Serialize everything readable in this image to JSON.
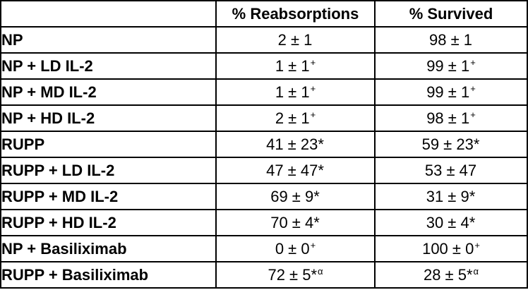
{
  "table": {
    "headers": [
      "",
      "% Reabsorptions",
      "% Survived"
    ],
    "rows": [
      {
        "label": "NP",
        "reabsorptions": {
          "value": "2 ± 1",
          "sup": ""
        },
        "survived": {
          "value": "98 ± 1",
          "sup": ""
        }
      },
      {
        "label": "NP + LD IL-2",
        "reabsorptions": {
          "value": "1 ± 1",
          "sup": "+"
        },
        "survived": {
          "value": "99 ± 1",
          "sup": "+"
        }
      },
      {
        "label": "NP + MD IL-2",
        "reabsorptions": {
          "value": "1 ± 1",
          "sup": "+"
        },
        "survived": {
          "value": "99 ± 1",
          "sup": "+"
        }
      },
      {
        "label": "NP + HD IL-2",
        "reabsorptions": {
          "value": "2 ± 1",
          "sup": "+"
        },
        "survived": {
          "value": "98 ± 1",
          "sup": "+"
        }
      },
      {
        "label": "RUPP",
        "reabsorptions": {
          "value": "41 ± 23*",
          "sup": ""
        },
        "survived": {
          "value": "59 ± 23*",
          "sup": ""
        }
      },
      {
        "label": "RUPP + LD IL-2",
        "reabsorptions": {
          "value": "47 ± 47*",
          "sup": ""
        },
        "survived": {
          "value": "53 ± 47",
          "sup": ""
        }
      },
      {
        "label": "RUPP + MD IL-2",
        "reabsorptions": {
          "value": "69 ± 9*",
          "sup": ""
        },
        "survived": {
          "value": "31 ± 9*",
          "sup": ""
        }
      },
      {
        "label": "RUPP + HD IL-2",
        "reabsorptions": {
          "value": "70 ± 4*",
          "sup": ""
        },
        "survived": {
          "value": "30 ± 4*",
          "sup": ""
        }
      },
      {
        "label": "NP + Basiliximab",
        "reabsorptions": {
          "value": "0 ± 0",
          "sup": "+"
        },
        "survived": {
          "value": "100 ± 0",
          "sup": "+"
        }
      },
      {
        "label": "RUPP + Basiliximab",
        "reabsorptions": {
          "value": "72 ± 5*",
          "sup": "α"
        },
        "survived": {
          "value": "28 ± 5*",
          "sup": "α"
        }
      }
    ]
  }
}
